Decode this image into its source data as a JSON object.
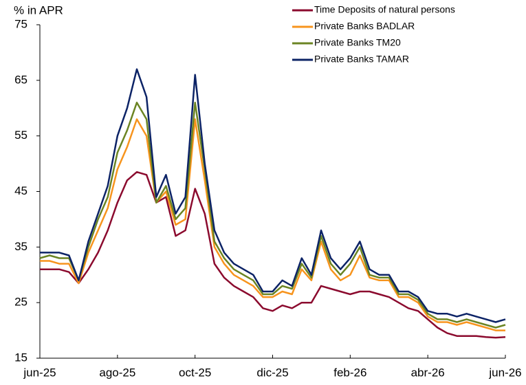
{
  "chart_data": {
    "type": "line",
    "y_label": "% in APR",
    "categories": [
      "jun-25",
      null,
      null,
      null,
      null,
      null,
      null,
      null,
      "ago-25",
      null,
      null,
      null,
      null,
      null,
      null,
      null,
      "oct-25",
      null,
      null,
      null,
      null,
      null,
      null,
      null,
      "dic-25",
      null,
      null,
      null,
      null,
      null,
      null,
      null,
      "feb-26",
      null,
      null,
      null,
      null,
      null,
      null,
      null,
      "abr-26",
      null,
      null,
      null,
      null,
      null,
      null,
      null,
      "jun-26"
    ],
    "ylim": [
      15,
      75
    ],
    "yticks": [
      15,
      25,
      35,
      45,
      55,
      65,
      75
    ],
    "grid": false,
    "legend": "top-right",
    "series": [
      {
        "name": "Time Deposits of natural persons",
        "color": "#8b0a2e",
        "values": [
          31,
          31,
          31,
          30.5,
          28.5,
          31,
          34,
          38,
          43,
          47,
          48.5,
          48,
          43,
          44,
          37,
          38,
          45.5,
          41,
          32,
          29.5,
          28,
          27,
          26,
          24,
          23.5,
          24.5,
          24,
          25,
          25,
          28,
          27.5,
          27,
          26.5,
          27,
          27,
          26.5,
          26,
          25,
          24,
          23.5,
          22,
          20.5,
          19.5,
          19,
          19,
          19,
          18.8,
          18.7,
          18.8
        ]
      },
      {
        "name": "Private Banks BADLAR",
        "color": "#f7941d",
        "values": [
          32.5,
          32.5,
          32,
          32,
          28.5,
          34,
          38,
          42,
          49,
          53,
          58,
          55,
          43,
          45,
          39,
          40,
          58,
          47,
          35,
          32,
          30,
          29,
          28,
          26,
          26,
          27,
          26.5,
          31,
          29,
          36,
          31,
          29,
          30,
          33.5,
          29.5,
          29,
          29,
          26,
          26,
          25,
          22.5,
          21.5,
          21.5,
          21,
          21.5,
          21,
          20.5,
          20,
          20
        ]
      },
      {
        "name": "Private Banks TM20",
        "color": "#6b8423",
        "values": [
          33,
          33.5,
          33,
          33,
          29,
          35,
          40,
          44,
          52,
          56,
          61,
          58,
          43,
          46,
          40,
          42,
          61,
          49,
          36,
          33,
          31,
          30,
          29,
          26.5,
          26.5,
          28,
          27.5,
          32,
          29.5,
          37,
          32,
          30,
          32,
          35,
          30,
          29.5,
          29.5,
          26.5,
          26.5,
          25.5,
          23,
          22,
          22,
          21.5,
          22,
          21.5,
          21,
          20.5,
          21
        ]
      },
      {
        "name": "Private Banks TAMAR",
        "color": "#0c2366",
        "values": [
          34,
          34,
          34,
          33.5,
          29,
          36,
          41,
          46,
          55,
          60,
          67,
          62,
          44,
          48,
          41,
          44,
          66,
          50,
          38,
          34,
          32,
          31,
          30,
          27,
          27,
          29,
          28,
          33,
          30,
          38,
          33,
          31,
          33,
          36,
          31,
          30,
          30,
          27,
          27,
          26,
          23.5,
          23,
          23,
          22.5,
          23,
          22.5,
          22,
          21.5,
          22
        ]
      }
    ]
  }
}
